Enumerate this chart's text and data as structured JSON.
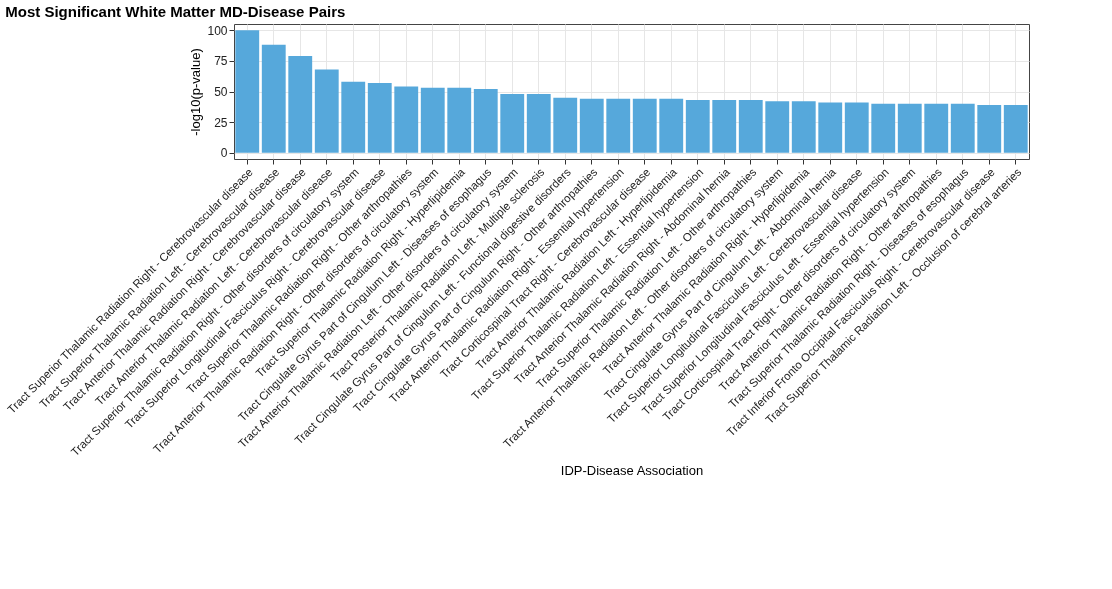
{
  "chart_data": {
    "type": "bar",
    "title": "Most Significant White Matter MD-Disease Pairs",
    "xlabel": "IDP-Disease Association",
    "ylabel": "-log10(p-value)",
    "categories": [
      "Tract Superior Thalamic Radiation Right - Cerebrovascular disease",
      "Tract Superior Thalamic Radiation Left - Cerebrovascular disease",
      "Tract Anterior Thalamic Radiation Right - Cerebrovascular disease",
      "Tract Anterior Thalamic Radiation Left - Cerebrovascular disease",
      "Tract Superior Thalamic Radiation Right - Other disorders of circulatory system",
      "Tract Superior Longitudinal Fasciculus Right - Cerebrovascular disease",
      "Tract Superior Thalamic Radiation Right - Other arthropathies",
      "Tract Anterior Thalamic Radiation Right - Other disorders of circulatory system",
      "Tract Superior Thalamic Radiation Right - Hyperlipidemia",
      "Tract Cingulate Gyrus Part of Cingulum Left - Diseases of esophagus",
      "Tract Anterior Thalamic Radiation Left - Other disorders of circulatory system",
      "Tract Posterior Thalamic Radiation Left - Multiple sclerosis",
      "Tract Cingulate Gyrus Part of Cingulum Left - Functional digestive disorders",
      "Tract Cingulate Gyrus Part of Cingulum Right - Other arthropathies",
      "Tract Anterior Thalamic Radiation Right - Essential hypertension",
      "Tract Corticospinal Tract Right - Cerebrovascular disease",
      "Tract Anterior Thalamic Radiation Left - Hyperlipidemia",
      "Tract Superior Thalamic Radiation Left - Essential hypertension",
      "Tract Anterior Thalamic Radiation Right - Abdominal hernia",
      "Tract Superior Thalamic Radiation Left - Other arthropathies",
      "Tract Anterior Thalamic Radiation Left - Other disorders of circulatory system",
      "Tract Anterior Thalamic Radiation Right - Hyperlipidemia",
      "Tract Cingulate Gyrus Part of Cingulum Left - Abdominal hernia",
      "Tract Superior Longitudinal Fasciculus Left - Cerebrovascular disease",
      "Tract Superior Longitudinal Fasciculus Left - Essential hypertension",
      "Tract Corticospinal Tract Right - Other disorders of circulatory system",
      "Tract Anterior Thalamic Radiation Right - Other arthropathies",
      "Tract Superior Thalamic Radiation Right - Diseases of esophagus",
      "Tract Inferior Fronto Occipital Fasciculus Right - Cerebrovascular disease",
      "Tract Superior Thalamic Radiation Left - Occlusion of cerebral arteries"
    ],
    "values": [
      100,
      88,
      79,
      68,
      58,
      57,
      54,
      53,
      53,
      52,
      48,
      48,
      45,
      44,
      44,
      44,
      44,
      43,
      43,
      43,
      42,
      42,
      41,
      41,
      40,
      40,
      40,
      40,
      39,
      39
    ],
    "color": "#56a8db",
    "ylim": [
      -5,
      105
    ],
    "yticks": [
      0,
      25,
      50,
      75,
      100
    ],
    "grid": true
  }
}
